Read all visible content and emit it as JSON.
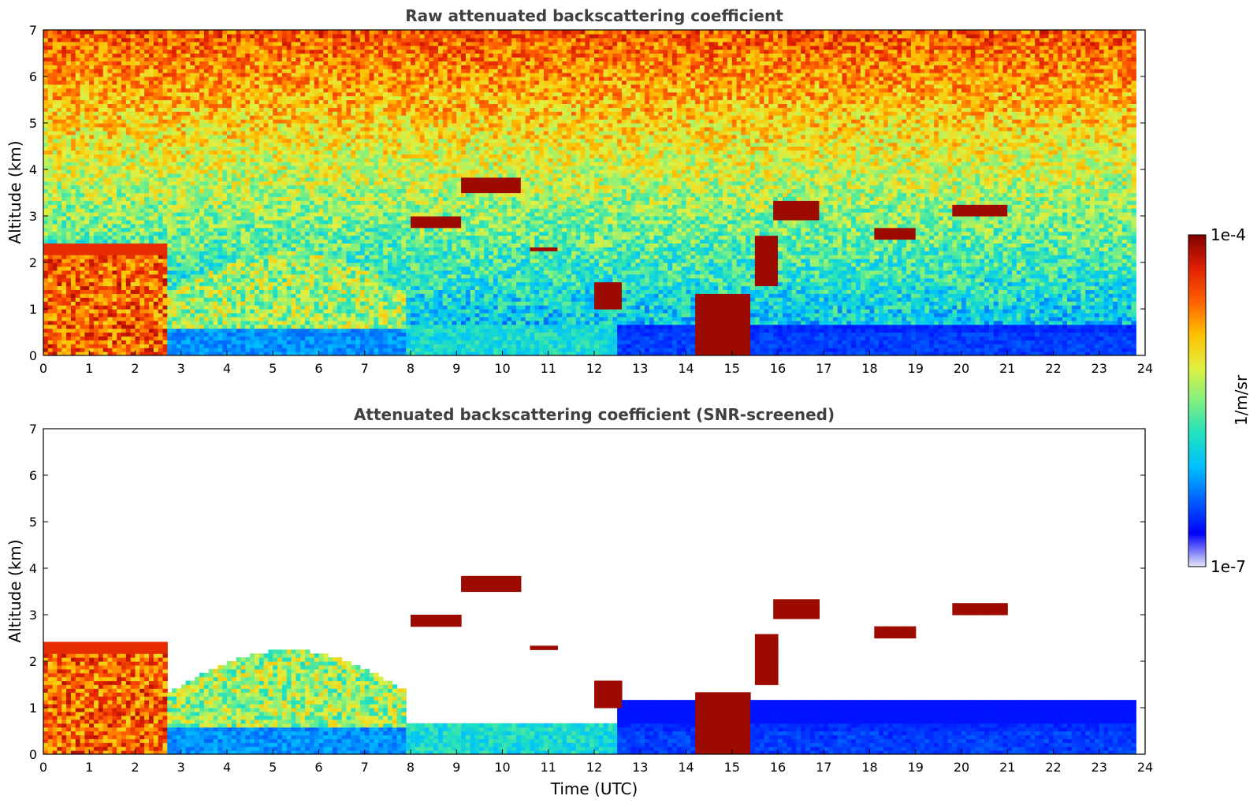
{
  "chart_data": [
    {
      "type": "heatmap",
      "title": "Raw attenuated backscattering coefficient",
      "xlabel": "",
      "ylabel": "Altitude (km)",
      "xlim": [
        0,
        24
      ],
      "ylim": [
        0,
        7
      ],
      "xticks": [
        "0",
        "1",
        "2",
        "3",
        "4",
        "5",
        "6",
        "7",
        "8",
        "9",
        "10",
        "11",
        "12",
        "13",
        "14",
        "15",
        "16",
        "17",
        "18",
        "19",
        "20",
        "21",
        "22",
        "23",
        "24"
      ],
      "yticks": [
        "0",
        "1",
        "2",
        "3",
        "4",
        "5",
        "6",
        "7"
      ],
      "data_end_time": 23.8,
      "features": [
        {
          "kind": "boundary_layer",
          "t": [
            0,
            2.7
          ],
          "alt": [
            0,
            2.3
          ],
          "level": "high"
        },
        {
          "kind": "aerosol_plumes",
          "t": [
            2.7,
            7.9
          ],
          "alt": [
            0,
            2.2
          ],
          "level": "medium"
        },
        {
          "kind": "cloud",
          "t": [
            8.0,
            9.0
          ],
          "alt": [
            2.7,
            2.95
          ]
        },
        {
          "kind": "cloud",
          "t": [
            9.1,
            10.3
          ],
          "alt": [
            3.5,
            3.8
          ]
        },
        {
          "kind": "cloud",
          "t": [
            10.6,
            11.1
          ],
          "alt": [
            2.2,
            2.3
          ]
        },
        {
          "kind": "cloud",
          "t": [
            12.0,
            12.5
          ],
          "alt": [
            1.0,
            1.5
          ]
        },
        {
          "kind": "cloud",
          "t": [
            14.2,
            15.3
          ],
          "alt": [
            0,
            1.3
          ]
        },
        {
          "kind": "cloud",
          "t": [
            15.5,
            15.9
          ],
          "alt": [
            1.5,
            2.5
          ]
        },
        {
          "kind": "cloud",
          "t": [
            15.9,
            16.8
          ],
          "alt": [
            2.9,
            3.3
          ]
        },
        {
          "kind": "cloud",
          "t": [
            18.1,
            18.9
          ],
          "alt": [
            2.5,
            2.7
          ]
        },
        {
          "kind": "cloud",
          "t": [
            19.8,
            20.9
          ],
          "alt": [
            3.0,
            3.2
          ]
        }
      ]
    },
    {
      "type": "heatmap",
      "title": "Attenuated backscattering coefficient (SNR-screened)",
      "xlabel": "Time (UTC)",
      "ylabel": "Altitude (km)",
      "xlim": [
        0,
        24
      ],
      "ylim": [
        0,
        7
      ],
      "xticks": [
        "0",
        "1",
        "2",
        "3",
        "4",
        "5",
        "6",
        "7",
        "8",
        "9",
        "10",
        "11",
        "12",
        "13",
        "14",
        "15",
        "16",
        "17",
        "18",
        "19",
        "20",
        "21",
        "22",
        "23",
        "24"
      ],
      "yticks": [
        "0",
        "1",
        "2",
        "3",
        "4",
        "5",
        "6",
        "7"
      ],
      "screened": true
    }
  ],
  "colorbar": {
    "label": "1/m/sr",
    "max_label": "1e-4",
    "min_label": "1e-7",
    "scale": "log",
    "colors": [
      "#e6e6f8",
      "#0000ff",
      "#0060ff",
      "#00c0ff",
      "#20e0c0",
      "#80f080",
      "#e0f040",
      "#ffc000",
      "#ff6000",
      "#e02000",
      "#800000"
    ]
  }
}
